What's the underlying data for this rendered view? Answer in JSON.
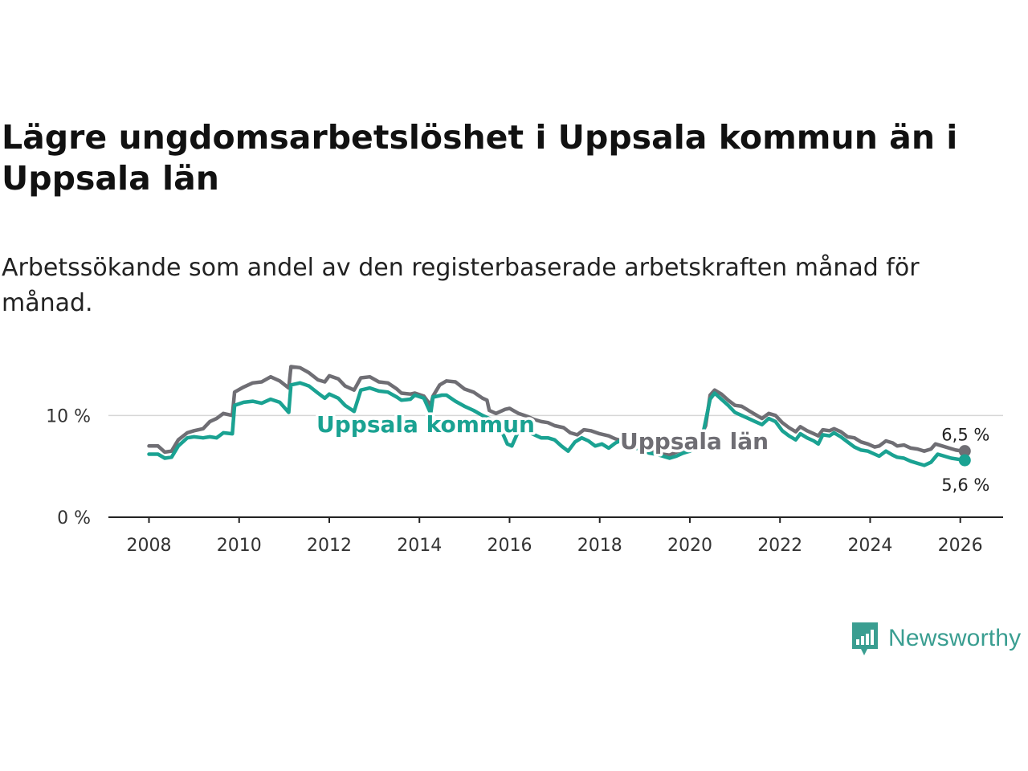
{
  "header": {
    "title": "Lägre ungdomsarbetslöshet i Uppsala kommun än i Uppsala län",
    "subtitle": "Arbetssökande som andel av den registerbaserade arbetskraften månad för månad."
  },
  "branding": {
    "logo_text": "Newsworthy",
    "logo_color": "#3a9e91"
  },
  "chart_data": {
    "type": "line",
    "title": "Lägre ungdomsarbetslöshet i Uppsala kommun än i Uppsala län",
    "subtitle": "Arbetssökande som andel av den registerbaserade arbetskraften månad för månad.",
    "xlabel": "",
    "ylabel": "",
    "xlim": [
      2007.1,
      2026.95
    ],
    "ylim": [
      0,
      15
    ],
    "x_ticks": [
      2008,
      2010,
      2012,
      2014,
      2016,
      2018,
      2020,
      2022,
      2024,
      2026
    ],
    "x_tick_labels": [
      "2008",
      "2010",
      "2012",
      "2014",
      "2016",
      "2018",
      "2020",
      "2022",
      "2024",
      "2026"
    ],
    "y_ticks": [
      0,
      10
    ],
    "y_tick_labels": [
      "0 %",
      "10 %"
    ],
    "grid": "horizontal",
    "series": [
      {
        "name": "Uppsala län",
        "color": "#6f6e74",
        "label": "Uppsala län",
        "end_label": "6,5 %",
        "points": [
          [
            2008.0,
            7.0
          ],
          [
            2008.2,
            7.0
          ],
          [
            2008.35,
            6.4
          ],
          [
            2008.5,
            6.5
          ],
          [
            2008.65,
            7.6
          ],
          [
            2008.85,
            8.3
          ],
          [
            2009.0,
            8.5
          ],
          [
            2009.2,
            8.7
          ],
          [
            2009.35,
            9.4
          ],
          [
            2009.5,
            9.7
          ],
          [
            2009.65,
            10.2
          ],
          [
            2009.85,
            10.0
          ],
          [
            2009.9,
            12.3
          ],
          [
            2010.1,
            12.8
          ],
          [
            2010.3,
            13.2
          ],
          [
            2010.5,
            13.3
          ],
          [
            2010.7,
            13.8
          ],
          [
            2010.9,
            13.4
          ],
          [
            2011.1,
            12.7
          ],
          [
            2011.15,
            14.8
          ],
          [
            2011.35,
            14.7
          ],
          [
            2011.55,
            14.2
          ],
          [
            2011.75,
            13.5
          ],
          [
            2011.9,
            13.3
          ],
          [
            2012.0,
            13.9
          ],
          [
            2012.2,
            13.6
          ],
          [
            2012.35,
            12.9
          ],
          [
            2012.55,
            12.5
          ],
          [
            2012.7,
            13.7
          ],
          [
            2012.9,
            13.8
          ],
          [
            2013.1,
            13.3
          ],
          [
            2013.3,
            13.2
          ],
          [
            2013.5,
            12.6
          ],
          [
            2013.6,
            12.2
          ],
          [
            2013.8,
            12.1
          ],
          [
            2013.9,
            12.2
          ],
          [
            2014.1,
            11.9
          ],
          [
            2014.25,
            11.0
          ],
          [
            2014.3,
            11.9
          ],
          [
            2014.45,
            13.0
          ],
          [
            2014.6,
            13.4
          ],
          [
            2014.8,
            13.3
          ],
          [
            2015.0,
            12.6
          ],
          [
            2015.2,
            12.3
          ],
          [
            2015.4,
            11.7
          ],
          [
            2015.5,
            11.5
          ],
          [
            2015.55,
            10.5
          ],
          [
            2015.7,
            10.2
          ],
          [
            2015.9,
            10.6
          ],
          [
            2016.0,
            10.7
          ],
          [
            2016.2,
            10.2
          ],
          [
            2016.4,
            9.9
          ],
          [
            2016.55,
            9.6
          ],
          [
            2016.7,
            9.4
          ],
          [
            2016.85,
            9.3
          ],
          [
            2017.0,
            9.0
          ],
          [
            2017.2,
            8.8
          ],
          [
            2017.35,
            8.3
          ],
          [
            2017.5,
            8.1
          ],
          [
            2017.65,
            8.6
          ],
          [
            2017.8,
            8.5
          ],
          [
            2018.0,
            8.2
          ],
          [
            2018.2,
            8.0
          ],
          [
            2018.35,
            7.7
          ],
          [
            2018.5,
            7.5
          ],
          [
            2018.6,
            7.3
          ],
          [
            2018.75,
            7.0
          ],
          [
            2018.9,
            6.8
          ],
          [
            2019.1,
            6.6
          ],
          [
            2019.25,
            6.3
          ],
          [
            2019.4,
            6.2
          ],
          [
            2019.55,
            6.1
          ],
          [
            2019.65,
            6.3
          ],
          [
            2019.8,
            6.6
          ],
          [
            2019.95,
            6.9
          ],
          [
            2020.1,
            7.2
          ],
          [
            2020.2,
            7.6
          ],
          [
            2020.35,
            9.0
          ],
          [
            2020.45,
            12.0
          ],
          [
            2020.55,
            12.5
          ],
          [
            2020.7,
            12.1
          ],
          [
            2020.85,
            11.5
          ],
          [
            2021.0,
            11.0
          ],
          [
            2021.15,
            10.9
          ],
          [
            2021.3,
            10.5
          ],
          [
            2021.45,
            10.1
          ],
          [
            2021.6,
            9.7
          ],
          [
            2021.75,
            10.2
          ],
          [
            2021.9,
            10.0
          ],
          [
            2022.05,
            9.3
          ],
          [
            2022.2,
            8.8
          ],
          [
            2022.35,
            8.4
          ],
          [
            2022.45,
            8.9
          ],
          [
            2022.6,
            8.5
          ],
          [
            2022.75,
            8.2
          ],
          [
            2022.85,
            8.0
          ],
          [
            2022.95,
            8.6
          ],
          [
            2023.1,
            8.5
          ],
          [
            2023.2,
            8.7
          ],
          [
            2023.35,
            8.4
          ],
          [
            2023.5,
            7.9
          ],
          [
            2023.65,
            7.8
          ],
          [
            2023.8,
            7.4
          ],
          [
            2023.95,
            7.2
          ],
          [
            2024.1,
            6.9
          ],
          [
            2024.2,
            7.0
          ],
          [
            2024.35,
            7.5
          ],
          [
            2024.5,
            7.3
          ],
          [
            2024.6,
            7.0
          ],
          [
            2024.75,
            7.1
          ],
          [
            2024.9,
            6.8
          ],
          [
            2025.05,
            6.7
          ],
          [
            2025.2,
            6.5
          ],
          [
            2025.35,
            6.7
          ],
          [
            2025.45,
            7.2
          ],
          [
            2025.6,
            7.0
          ],
          [
            2025.75,
            6.8
          ],
          [
            2025.9,
            6.6
          ],
          [
            2026.05,
            6.5
          ],
          [
            2026.1,
            6.5
          ]
        ]
      },
      {
        "name": "Uppsala kommun",
        "color": "#1aa292",
        "label": "Uppsala kommun",
        "end_label": "5,6 %",
        "points": [
          [
            2008.0,
            6.2
          ],
          [
            2008.2,
            6.2
          ],
          [
            2008.35,
            5.8
          ],
          [
            2008.5,
            5.9
          ],
          [
            2008.65,
            7.0
          ],
          [
            2008.85,
            7.8
          ],
          [
            2009.0,
            7.9
          ],
          [
            2009.2,
            7.8
          ],
          [
            2009.35,
            7.9
          ],
          [
            2009.5,
            7.8
          ],
          [
            2009.65,
            8.3
          ],
          [
            2009.85,
            8.2
          ],
          [
            2009.9,
            11.0
          ],
          [
            2010.1,
            11.3
          ],
          [
            2010.3,
            11.4
          ],
          [
            2010.5,
            11.2
          ],
          [
            2010.7,
            11.6
          ],
          [
            2010.9,
            11.3
          ],
          [
            2011.1,
            10.3
          ],
          [
            2011.15,
            13.0
          ],
          [
            2011.35,
            13.2
          ],
          [
            2011.55,
            12.9
          ],
          [
            2011.75,
            12.2
          ],
          [
            2011.9,
            11.7
          ],
          [
            2012.0,
            12.1
          ],
          [
            2012.2,
            11.7
          ],
          [
            2012.35,
            11.0
          ],
          [
            2012.55,
            10.4
          ],
          [
            2012.7,
            12.5
          ],
          [
            2012.9,
            12.7
          ],
          [
            2013.1,
            12.4
          ],
          [
            2013.3,
            12.3
          ],
          [
            2013.5,
            11.8
          ],
          [
            2013.6,
            11.5
          ],
          [
            2013.8,
            11.6
          ],
          [
            2013.9,
            12.0
          ],
          [
            2014.1,
            11.7
          ],
          [
            2014.25,
            10.2
          ],
          [
            2014.3,
            11.8
          ],
          [
            2014.5,
            12.0
          ],
          [
            2014.6,
            12.0
          ],
          [
            2014.8,
            11.4
          ],
          [
            2015.0,
            10.9
          ],
          [
            2015.2,
            10.5
          ],
          [
            2015.4,
            10.0
          ],
          [
            2015.6,
            9.6
          ],
          [
            2015.8,
            8.7
          ],
          [
            2015.95,
            7.2
          ],
          [
            2016.05,
            7.0
          ],
          [
            2016.2,
            8.5
          ],
          [
            2016.35,
            8.7
          ],
          [
            2016.5,
            8.2
          ],
          [
            2016.7,
            7.8
          ],
          [
            2016.85,
            7.8
          ],
          [
            2017.0,
            7.6
          ],
          [
            2017.15,
            7.0
          ],
          [
            2017.3,
            6.5
          ],
          [
            2017.45,
            7.4
          ],
          [
            2017.6,
            7.8
          ],
          [
            2017.75,
            7.5
          ],
          [
            2017.9,
            7.0
          ],
          [
            2018.05,
            7.2
          ],
          [
            2018.2,
            6.8
          ],
          [
            2018.35,
            7.3
          ],
          [
            2018.5,
            7.6
          ],
          [
            2018.65,
            7.4
          ],
          [
            2018.8,
            6.8
          ],
          [
            2018.95,
            6.6
          ],
          [
            2019.1,
            6.3
          ],
          [
            2019.25,
            6.2
          ],
          [
            2019.4,
            6.0
          ],
          [
            2019.55,
            5.8
          ],
          [
            2019.7,
            6.0
          ],
          [
            2019.85,
            6.3
          ],
          [
            2020.0,
            6.5
          ],
          [
            2020.15,
            6.9
          ],
          [
            2020.3,
            8.4
          ],
          [
            2020.45,
            11.6
          ],
          [
            2020.55,
            12.2
          ],
          [
            2020.7,
            11.6
          ],
          [
            2020.85,
            11.0
          ],
          [
            2021.0,
            10.3
          ],
          [
            2021.15,
            10.0
          ],
          [
            2021.3,
            9.7
          ],
          [
            2021.45,
            9.4
          ],
          [
            2021.6,
            9.1
          ],
          [
            2021.75,
            9.7
          ],
          [
            2021.9,
            9.4
          ],
          [
            2022.05,
            8.5
          ],
          [
            2022.2,
            8.0
          ],
          [
            2022.35,
            7.6
          ],
          [
            2022.45,
            8.2
          ],
          [
            2022.6,
            7.8
          ],
          [
            2022.75,
            7.5
          ],
          [
            2022.85,
            7.2
          ],
          [
            2022.95,
            8.1
          ],
          [
            2023.1,
            8.0
          ],
          [
            2023.2,
            8.3
          ],
          [
            2023.35,
            7.9
          ],
          [
            2023.5,
            7.4
          ],
          [
            2023.65,
            6.9
          ],
          [
            2023.8,
            6.6
          ],
          [
            2023.95,
            6.5
          ],
          [
            2024.1,
            6.2
          ],
          [
            2024.2,
            6.0
          ],
          [
            2024.35,
            6.5
          ],
          [
            2024.5,
            6.1
          ],
          [
            2024.6,
            5.9
          ],
          [
            2024.75,
            5.8
          ],
          [
            2024.9,
            5.5
          ],
          [
            2025.05,
            5.3
          ],
          [
            2025.2,
            5.1
          ],
          [
            2025.35,
            5.4
          ],
          [
            2025.5,
            6.2
          ],
          [
            2025.65,
            6.0
          ],
          [
            2025.8,
            5.8
          ],
          [
            2025.95,
            5.7
          ],
          [
            2026.1,
            5.6
          ]
        ]
      }
    ]
  }
}
